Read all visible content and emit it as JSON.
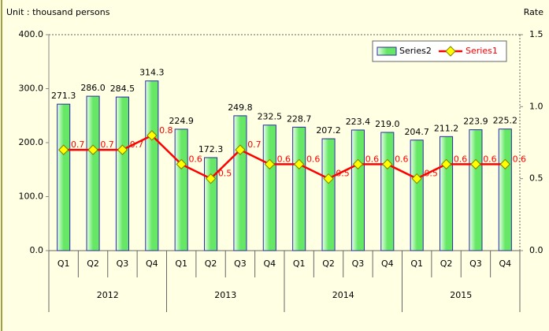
{
  "chart_data": {
    "type": "bar_line",
    "ylabel": "Unit : thousand persons",
    "y2label": "Rate",
    "categories": [
      "Q1",
      "Q2",
      "Q3",
      "Q4",
      "Q1",
      "Q2",
      "Q3",
      "Q4",
      "Q1",
      "Q2",
      "Q3",
      "Q4",
      "Q1",
      "Q2",
      "Q3",
      "Q4"
    ],
    "category_groups": [
      "2012",
      "2013",
      "2014",
      "2015"
    ],
    "series": [
      {
        "name": "Series2",
        "type": "bar",
        "color": "#66e866",
        "values": [
          271.3,
          286.0,
          284.5,
          314.3,
          224.9,
          172.3,
          249.8,
          232.5,
          228.7,
          207.2,
          223.4,
          219.0,
          204.7,
          211.2,
          223.9,
          225.2
        ],
        "value_labels": [
          "271.3",
          "286.0",
          "284.5",
          "314.3",
          "224.9",
          "172.3",
          "249.8",
          "232.5",
          "228.7",
          "207.2",
          "223.4",
          "219.0",
          "204.7",
          "211.2",
          "223.9",
          "225.2"
        ]
      },
      {
        "name": "Series1",
        "type": "line",
        "axis": "y2",
        "color": "#ff0000",
        "values": [
          0.7,
          0.7,
          0.7,
          0.8,
          0.6,
          0.5,
          0.7,
          0.6,
          0.6,
          0.5,
          0.6,
          0.6,
          0.5,
          0.6,
          0.6,
          0.6
        ]
      }
    ],
    "ylim": [
      0,
      400
    ],
    "yticks": [
      {
        "value": 0,
        "label": "0.0"
      },
      {
        "value": 100,
        "label": "100.0"
      },
      {
        "value": 200,
        "label": "200.0"
      },
      {
        "value": 300,
        "label": "300.0"
      },
      {
        "value": 400,
        "label": "400.0"
      }
    ],
    "y2lim": [
      0,
      1.5
    ],
    "y2ticks": [
      {
        "value": 0,
        "label": "0.0"
      },
      0.5,
      {
        "value": 1,
        "label": "1.0"
      },
      1.5
    ],
    "legend": "top-right"
  }
}
